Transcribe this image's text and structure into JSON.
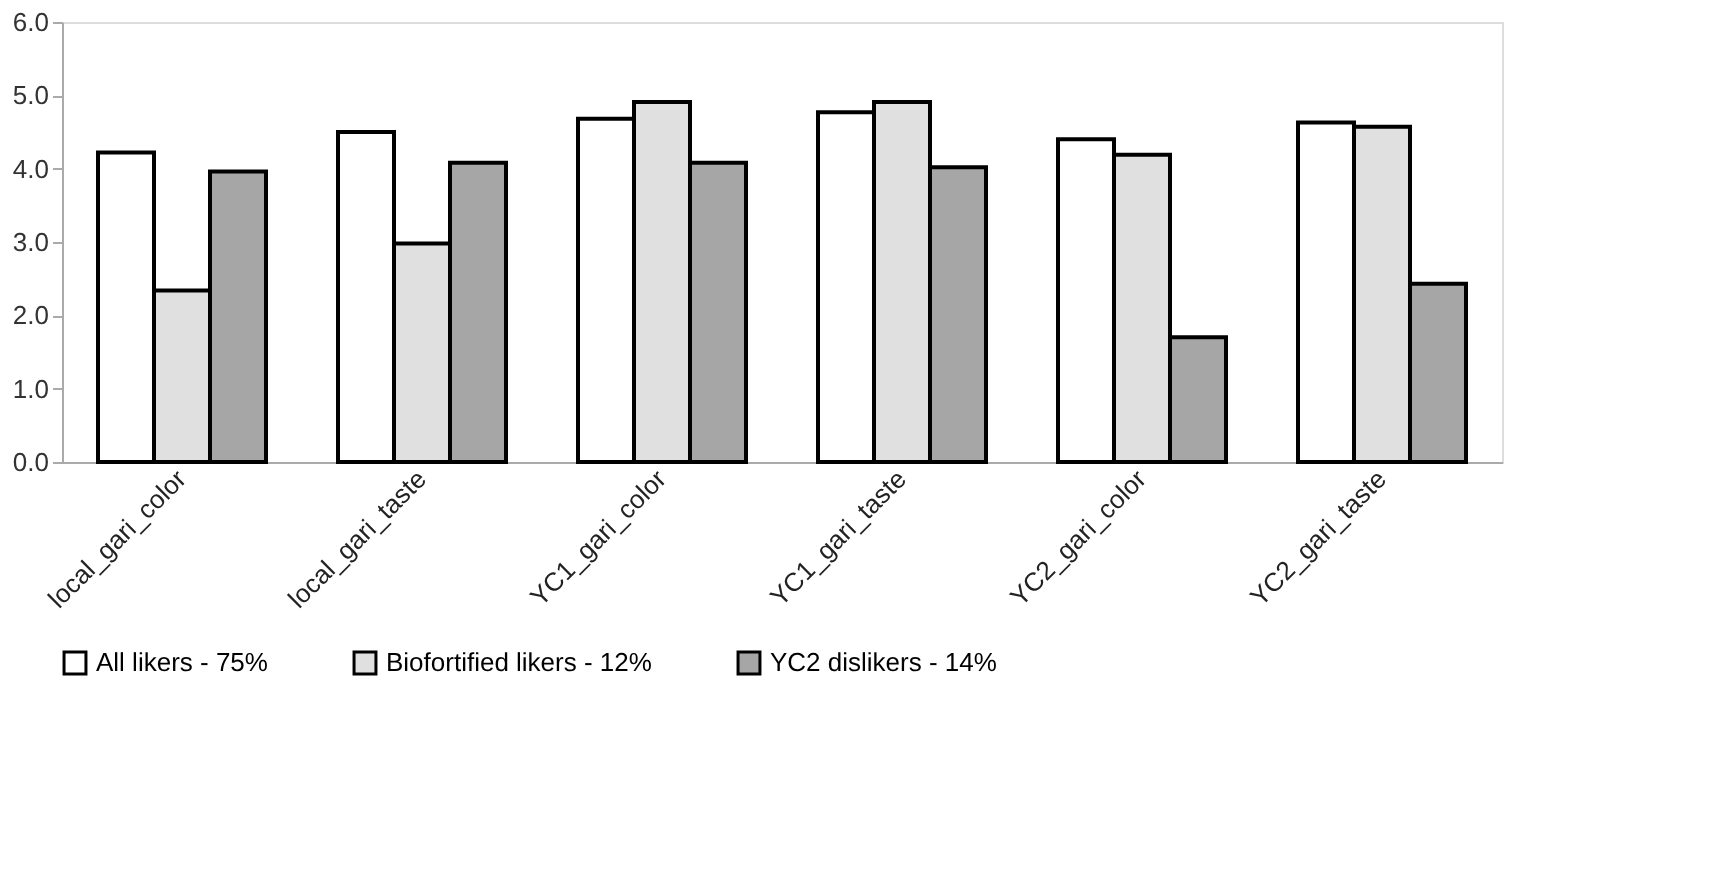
{
  "chart_data": {
    "type": "bar",
    "categories": [
      "local_gari_color",
      "local_gari_taste",
      "YC1_gari_color",
      "YC1_gari_taste",
      "YC2_gari_color",
      "YC2_gari_taste"
    ],
    "series": [
      {
        "name": "All likers - 75%",
        "color": "#ffffff",
        "values": [
          4.22,
          4.5,
          4.68,
          4.77,
          4.4,
          4.63
        ]
      },
      {
        "name": "Biofortified likers - 12%",
        "color": "#e0e0e0",
        "values": [
          2.34,
          2.98,
          4.91,
          4.91,
          4.19,
          4.57
        ]
      },
      {
        "name": "YC2 dislikers - 14%",
        "color": "#a6a6a6",
        "values": [
          3.96,
          4.08,
          4.08,
          4.02,
          1.7,
          2.43
        ]
      }
    ],
    "ylim": [
      0,
      6
    ],
    "yticks": [
      {
        "value": 0,
        "label": "0.0"
      },
      {
        "value": 1,
        "label": "1.0"
      },
      {
        "value": 2,
        "label": "2.0"
      },
      {
        "value": 3,
        "label": "3.0"
      },
      {
        "value": 4,
        "label": "4.0"
      },
      {
        "value": 5,
        "label": "5.0"
      },
      {
        "value": 6,
        "label": "6.0"
      }
    ],
    "grid": false,
    "legend": "bottom"
  }
}
